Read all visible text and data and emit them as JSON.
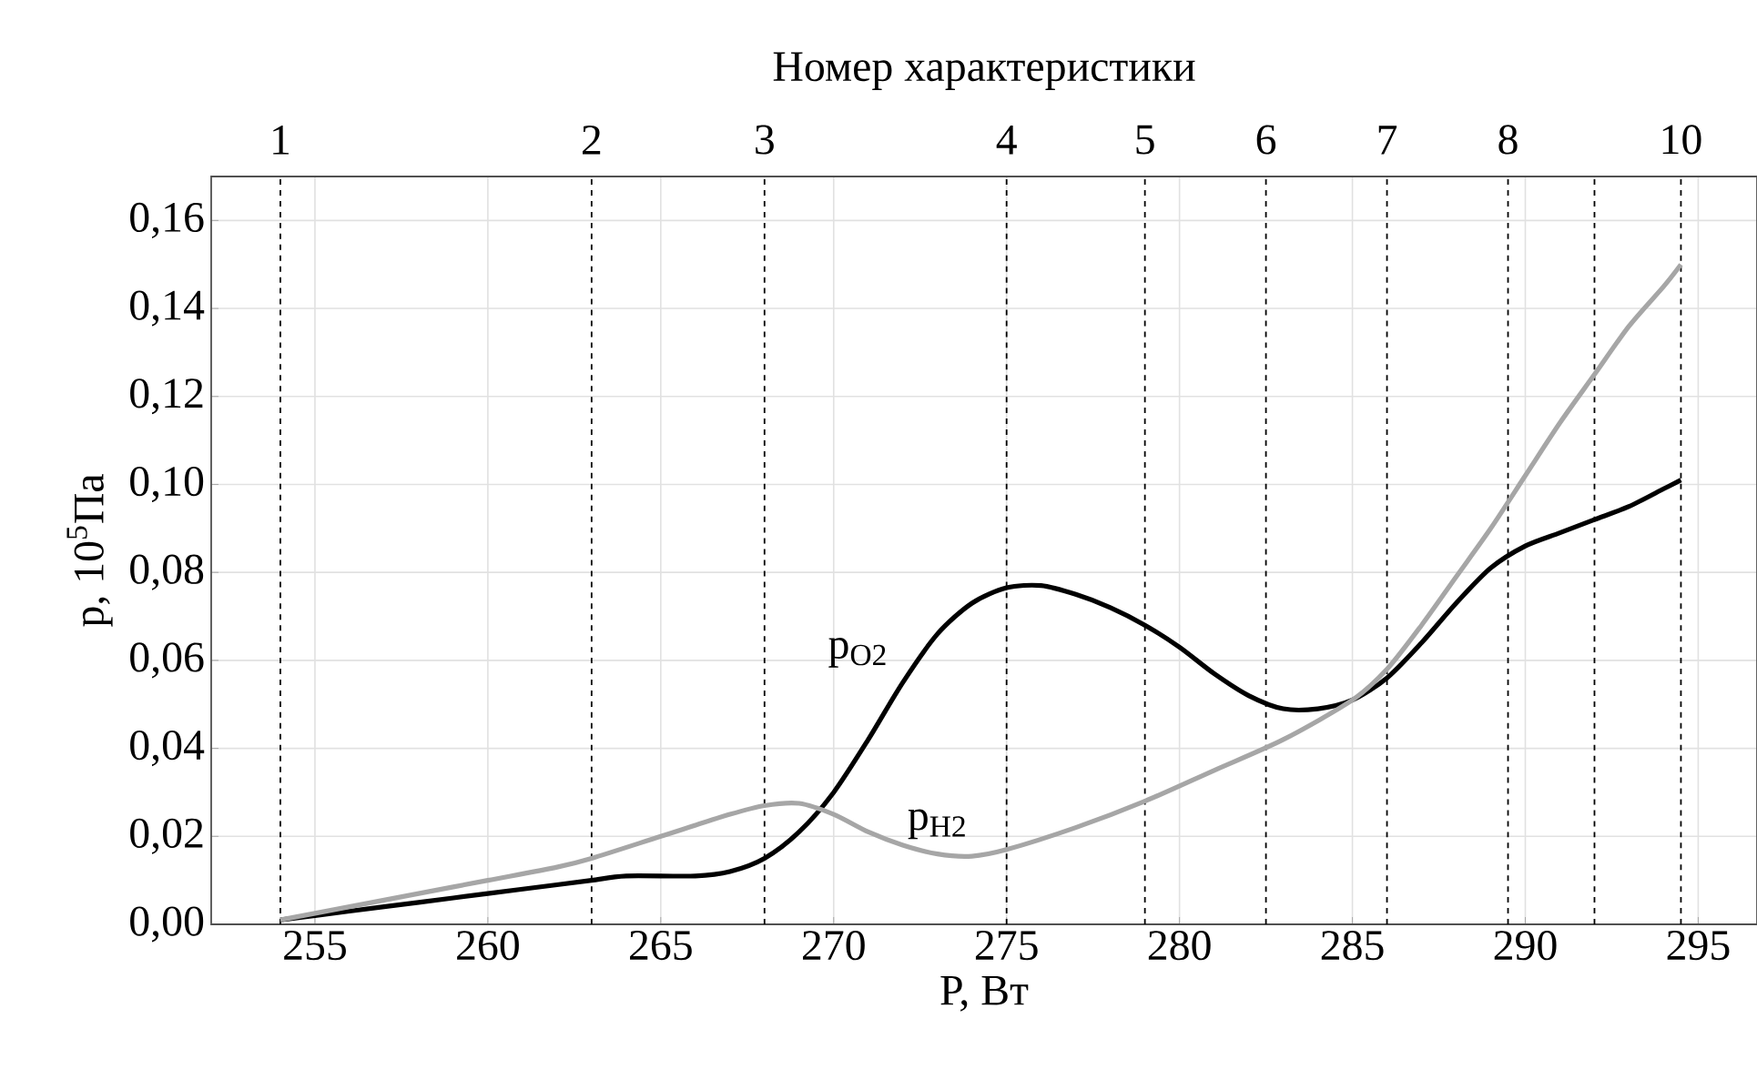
{
  "chart_data": {
    "type": "line",
    "xlabel": "P, Вт",
    "ylabel": "p, 10$^{5}$Па",
    "x2label": "Номер характеристики",
    "xlim": [
      252,
      296.7
    ],
    "ylim": [
      0,
      0.17
    ],
    "xticks": [
      255,
      260,
      265,
      270,
      275,
      280,
      285,
      290,
      295
    ],
    "yticks": [
      {
        "value": 0,
        "label": "0,00"
      },
      {
        "value": 0.02,
        "label": "0,02"
      },
      {
        "value": 0.04,
        "label": "0,04"
      },
      {
        "value": 0.06,
        "label": "0,06"
      },
      {
        "value": 0.08,
        "label": "0,08"
      },
      {
        "value": 0.1,
        "label": "0,10"
      },
      {
        "value": 0.12,
        "label": "0,12"
      },
      {
        "value": 0.14,
        "label": "0,14"
      },
      {
        "value": 0.16,
        "label": "0,16"
      }
    ],
    "grid": true,
    "annotations": [
      {
        "text": "1",
        "x": 254,
        "y": 0.17
      },
      {
        "text": "2",
        "x": 263,
        "y": 0.17
      },
      {
        "text": "3",
        "x": 268,
        "y": 0.17
      },
      {
        "text": "4",
        "x": 275,
        "y": 0.17
      },
      {
        "text": "5",
        "x": 279,
        "y": 0.17
      },
      {
        "text": "6",
        "x": 282.5,
        "y": 0.17
      },
      {
        "text": "7",
        "x": 286,
        "y": 0.17
      },
      {
        "text": "8",
        "x": 289.5,
        "y": 0.17
      },
      {
        "text": "10",
        "x": 294.5,
        "y": 0.17
      }
    ],
    "ref_lines": [
      {
        "axis": "x",
        "value": 254,
        "color": "#000000",
        "line_style": "dashed"
      },
      {
        "axis": "x",
        "value": 263,
        "color": "#000000",
        "line_style": "dashed"
      },
      {
        "axis": "x",
        "value": 268,
        "color": "#000000",
        "line_style": "dashed"
      },
      {
        "axis": "x",
        "value": 275,
        "color": "#000000",
        "line_style": "dashed"
      },
      {
        "axis": "x",
        "value": 279,
        "color": "#000000",
        "line_style": "dashed"
      },
      {
        "axis": "x",
        "value": 282.5,
        "color": "#000000",
        "line_style": "dashed"
      },
      {
        "axis": "x",
        "value": 286,
        "color": "#000000",
        "line_style": "dashed"
      },
      {
        "axis": "x",
        "value": 289.5,
        "color": "#000000",
        "line_style": "dashed"
      },
      {
        "axis": "x",
        "value": 292,
        "color": "#000000",
        "line_style": "dashed"
      },
      {
        "axis": "x",
        "value": 294.5,
        "color": "#000000",
        "line_style": "dashed"
      }
    ],
    "series": [
      {
        "name": "p$_{O2}$",
        "color": "#000000",
        "x": [
          254,
          256,
          258,
          260,
          262,
          263,
          264,
          266,
          267,
          268,
          269,
          270,
          271,
          272,
          273,
          274,
          275,
          276,
          277,
          278,
          279,
          280,
          281,
          282,
          283,
          284,
          285,
          286,
          287,
          288,
          289,
          290,
          291,
          292,
          293,
          294,
          294.5
        ],
        "values": [
          0.001,
          0.003,
          0.005,
          0.007,
          0.009,
          0.01,
          0.011,
          0.011,
          0.012,
          0.015,
          0.021,
          0.03,
          0.042,
          0.055,
          0.066,
          0.073,
          0.0765,
          0.077,
          0.075,
          0.072,
          0.068,
          0.063,
          0.057,
          0.052,
          0.049,
          0.049,
          0.051,
          0.056,
          0.064,
          0.073,
          0.081,
          0.086,
          0.089,
          0.092,
          0.095,
          0.099,
          0.101
        ]
      },
      {
        "name": "p$_{H2}$",
        "color": "#a6a6a6",
        "x": [
          254,
          256,
          258,
          260,
          262,
          263,
          265,
          267,
          268,
          269,
          270,
          271,
          272,
          273,
          274,
          275,
          277,
          279,
          281,
          283,
          285,
          286,
          287,
          288,
          289,
          290,
          291,
          292,
          293,
          294,
          294.5
        ],
        "values": [
          0.001,
          0.004,
          0.007,
          0.01,
          0.013,
          0.015,
          0.02,
          0.025,
          0.027,
          0.0275,
          0.025,
          0.021,
          0.018,
          0.016,
          0.0155,
          0.017,
          0.022,
          0.028,
          0.035,
          0.042,
          0.051,
          0.058,
          0.068,
          0.079,
          0.09,
          0.102,
          0.114,
          0.125,
          0.136,
          0.145,
          0.15
        ]
      }
    ]
  }
}
